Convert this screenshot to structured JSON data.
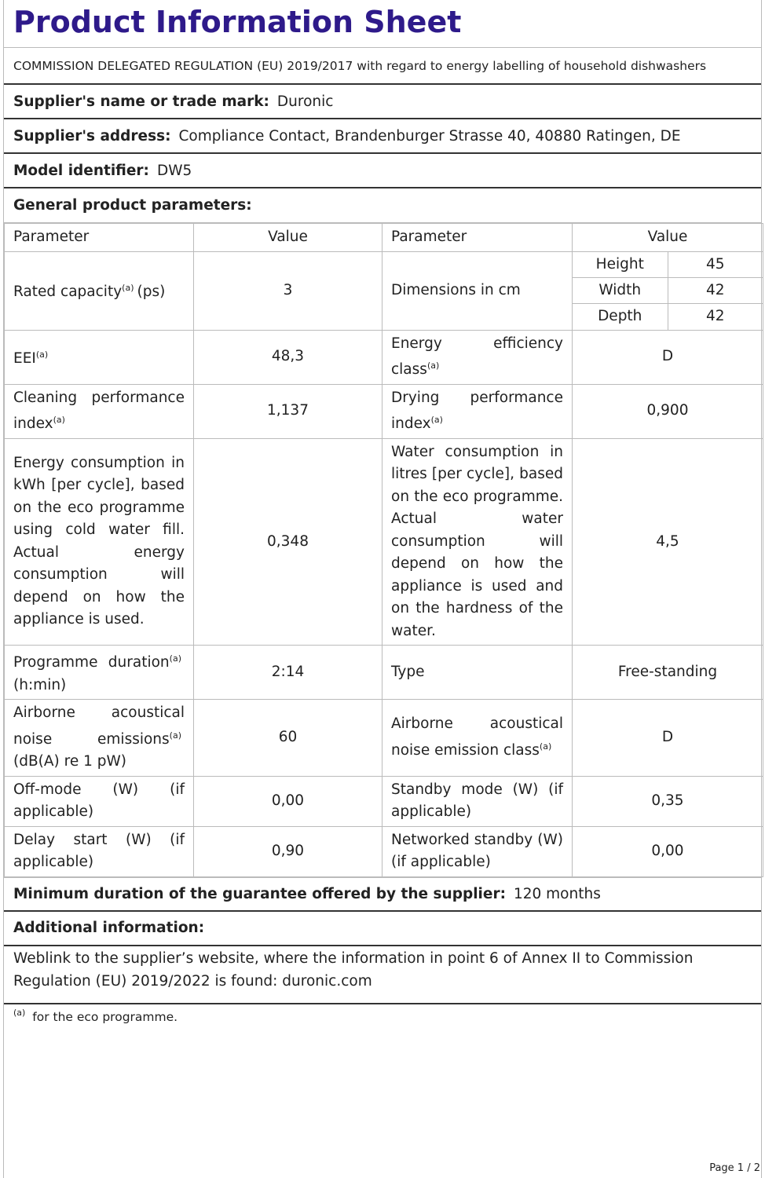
{
  "header": {
    "title": "Product Information Sheet",
    "subtitle": "COMMISSION DELEGATED REGULATION (EU) 2019/2017 with regard to energy labelling of household dishwashers"
  },
  "supplier": {
    "label": "Supplier's name or trade mark:",
    "value": "Duronic"
  },
  "address": {
    "label": "Supplier's address:",
    "value": "Compliance Contact, Brandenburger Strasse 40, 40880 Ratingen, DE"
  },
  "model": {
    "label": "Model identifier:",
    "value": "DW5"
  },
  "general": {
    "label": "General product parameters:"
  },
  "table": {
    "header": [
      "Parameter",
      "Value",
      "Parameter",
      "Value"
    ],
    "rows": [
      {
        "left": {
          "text": "Rated capacity",
          "note": "(a)",
          "unit": "(ps)"
        },
        "left_value": "3",
        "right": {
          "text": "Dimensions in cm"
        },
        "right_value": [
          [
            "Height",
            "45"
          ],
          [
            "Width",
            "42"
          ],
          [
            "Depth",
            "42"
          ]
        ]
      },
      {
        "left": {
          "text": "EEI",
          "note": "(a)"
        },
        "left_value": "48,3",
        "right": {
          "text": "Energy efficiency class",
          "note": "(a)"
        },
        "right_value": "D"
      },
      {
        "left": {
          "text": "Cleaning performance index",
          "note": "(a)"
        },
        "left_value": "1,137",
        "right": {
          "text": "Drying performance index",
          "note": "(a)"
        },
        "right_value": "0,900"
      },
      {
        "left": {
          "text": "Energy consumption in kWh [per cycle], based on the eco programme using cold water fill. Actual energy consumption will depend on how the appliance is used."
        },
        "left_value": "0,348",
        "right": {
          "text": "Water consumption in litres [per cycle], based on the eco programme. Actual water consumption will depend on how the appliance is used and on the hardness of the water."
        },
        "right_value": "4,5"
      },
      {
        "left": {
          "text": "Programme duration",
          "note": "(a)",
          "unit": "(h:min)"
        },
        "left_value": "2:14",
        "right": {
          "text": "Type"
        },
        "right_value": "Free-standing"
      },
      {
        "left": {
          "text": "Airborne acoustical noise emissions",
          "note": "(a)",
          "unit": "(dB(A) re 1 pW)"
        },
        "left_value": "60",
        "right": {
          "text": "Airborne acoustical noise emission class",
          "note": "(a)"
        },
        "right_value": "D"
      },
      {
        "left": {
          "text": "Off-mode (W) (if applicable)"
        },
        "left_value": "0,00",
        "right": {
          "text": "Standby mode (W) (if applicable)"
        },
        "right_value": "0,35"
      },
      {
        "left": {
          "text": "Delay start (W) (if applicable)"
        },
        "left_value": "0,90",
        "right": {
          "text": "Networked standby (W) (if applicable)"
        },
        "right_value": "0,00"
      }
    ]
  },
  "guarantee": {
    "label": "Minimum duration of the guarantee offered by the supplier:",
    "value": "120 months"
  },
  "additional": {
    "label": "Additional information:"
  },
  "weblink": {
    "text": "Weblink to the supplier’s website, where the information in point 6 of Annex II to Commission Regulation (EU) 2019/2022 is found:",
    "value": "duronic.com"
  },
  "footnote": {
    "mark": "(a)",
    "text": "for the eco programme."
  },
  "page": "Page 1 / 2"
}
